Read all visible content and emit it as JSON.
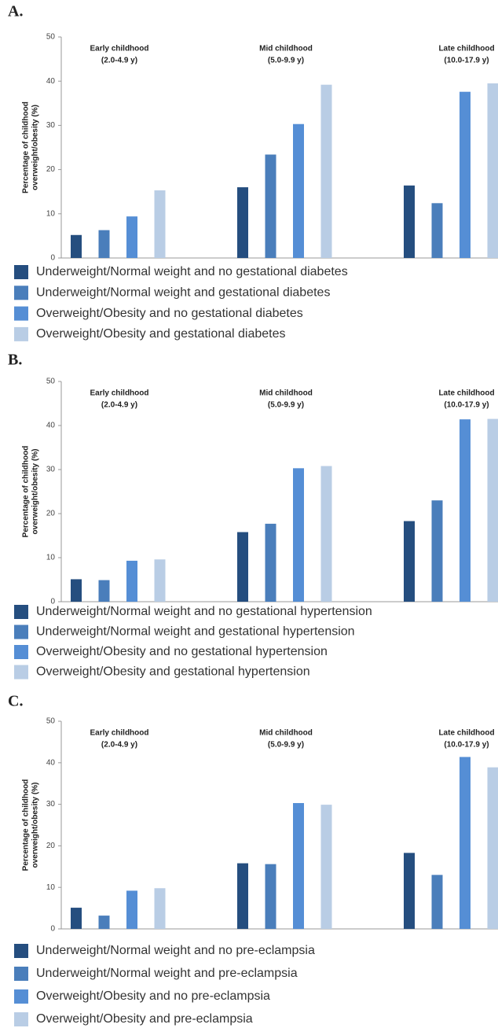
{
  "chart_data": [
    {
      "type": "bar",
      "panel": "A.",
      "categories": [
        [
          "Early childhood",
          "(2.0-4.9 y)"
        ],
        [
          "Mid childhood",
          "(5.0-9.9 y)"
        ],
        [
          "Late childhood",
          "(10.0-17.9 y)"
        ]
      ],
      "ylabel": [
        "Percentage of childhood",
        "overweight/obesity (%)"
      ],
      "ylim": [
        0,
        50
      ],
      "yticks": [
        0,
        10,
        20,
        30,
        40,
        50
      ],
      "series": [
        {
          "name": "Underweight/Normal weight and no gestational diabetes",
          "color": "#254e7f",
          "values": [
            5.2,
            16,
            16.4
          ]
        },
        {
          "name": "Underweight/Normal weight and gestational diabetes",
          "color": "#4a7ebb",
          "values": [
            6.3,
            23.4,
            12.4
          ]
        },
        {
          "name": "Overweight/Obesity and no gestational diabetes",
          "color": "#558ed5",
          "values": [
            9.4,
            30.3,
            37.6
          ]
        },
        {
          "name": "Overweight/Obesity and gestational diabetes",
          "color": "#b9cde5",
          "values": [
            15.3,
            39.2,
            39.5
          ]
        }
      ]
    },
    {
      "type": "bar",
      "panel": "B.",
      "categories": [
        [
          "Early childhood",
          "(2.0-4.9 y)"
        ],
        [
          "Mid childhood",
          "(5.0-9.9 y)"
        ],
        [
          "Late childhood",
          "(10.0-17.9 y)"
        ]
      ],
      "ylabel": [
        "Percentage of childhood",
        "overweight/obesity (%)"
      ],
      "ylim": [
        0,
        50
      ],
      "yticks": [
        0,
        10,
        20,
        30,
        40,
        50
      ],
      "series": [
        {
          "name": "Underweight/Normal weight and no gestational hypertension",
          "color": "#254e7f",
          "values": [
            5.1,
            15.8,
            18.3
          ]
        },
        {
          "name": "Underweight/Normal weight and gestational hypertension",
          "color": "#4a7ebb",
          "values": [
            4.9,
            17.7,
            23
          ]
        },
        {
          "name": "Overweight/Obesity and no gestational hypertension",
          "color": "#558ed5",
          "values": [
            9.3,
            30.3,
            41.4
          ]
        },
        {
          "name": "Overweight/Obesity and gestational hypertension",
          "color": "#b9cde5",
          "values": [
            9.6,
            30.8,
            41.5
          ]
        }
      ]
    },
    {
      "type": "bar",
      "panel": "C.",
      "categories": [
        [
          "Early childhood",
          "(2.0-4.9 y)"
        ],
        [
          "Mid childhood",
          "(5.0-9.9 y)"
        ],
        [
          "Late childhood",
          "(10.0-17.9 y)"
        ]
      ],
      "ylabel": [
        "Percentage of childhood",
        "overweight/obesity (%)"
      ],
      "ylim": [
        0,
        50
      ],
      "yticks": [
        0,
        10,
        20,
        30,
        40,
        50
      ],
      "series": [
        {
          "name": "Underweight/Normal weight and no pre-eclampsia",
          "color": "#254e7f",
          "values": [
            5.1,
            15.8,
            18.3
          ]
        },
        {
          "name": "Underweight/Normal weight and pre-eclampsia",
          "color": "#4a7ebb",
          "values": [
            3.2,
            15.6,
            13
          ]
        },
        {
          "name": "Overweight/Obesity and no pre-eclampsia",
          "color": "#558ed5",
          "values": [
            9.2,
            30.3,
            41.4
          ]
        },
        {
          "name": "Overweight/Obesity and pre-eclampsia",
          "color": "#b9cde5",
          "values": [
            9.8,
            29.9,
            38.9
          ]
        }
      ]
    }
  ]
}
